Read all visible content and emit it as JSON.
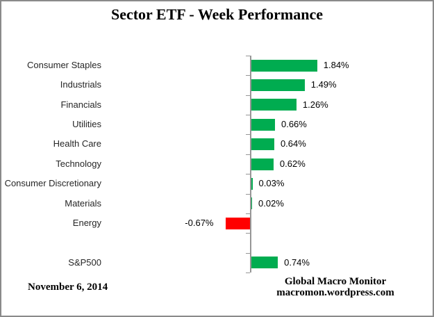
{
  "chart_data": {
    "type": "bar",
    "orientation": "horizontal",
    "title": "Sector ETF - Week Performance",
    "categories": [
      "Consumer Staples",
      "Industrials",
      "Financials",
      "Utilities",
      "Health Care",
      "Technology",
      "Consumer Discretionary",
      "Materials",
      "Energy",
      "",
      "S&P500"
    ],
    "values": [
      1.84,
      1.49,
      1.26,
      0.66,
      0.64,
      0.62,
      0.03,
      0.02,
      -0.67,
      null,
      0.74
    ],
    "value_labels": [
      "1.84%",
      "1.49%",
      "1.26%",
      "0.66%",
      "0.64%",
      "0.62%",
      "0.03%",
      "0.02%",
      "-0.67%",
      "",
      "0.74%"
    ],
    "unit": "%",
    "xlabel": "",
    "ylabel": "",
    "grid": false,
    "legend": false,
    "data_label_position": "outside-end",
    "positive_color": "#00AC50",
    "negative_color": "#FF0000",
    "axis_color": "#969696",
    "frame_color": "#8A8A8A"
  },
  "footer": {
    "date": "November 6, 2014",
    "source_line1": "Global Macro Monitor",
    "source_line2": "macromon.wordpress.com"
  }
}
